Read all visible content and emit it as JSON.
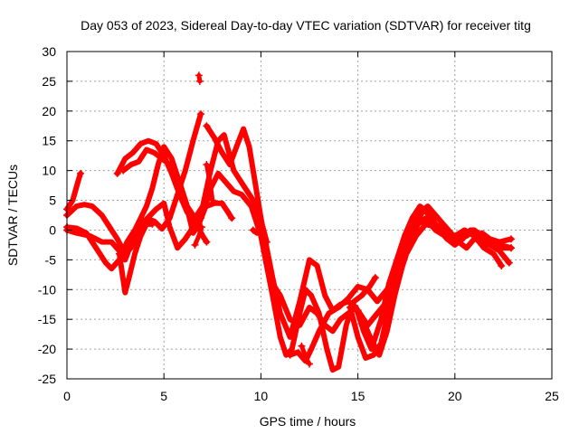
{
  "chart_data": {
    "type": "scatter",
    "title": "Day 053 of 2023, Sidereal Day-to-day VTEC variation (SDTVAR) for receiver titg",
    "xlabel": "GPS time / hours",
    "ylabel": "SDTVAR / TECUs",
    "xlim": [
      0,
      25
    ],
    "ylim": [
      -25,
      30
    ],
    "xticks": [
      0,
      5,
      10,
      15,
      20,
      25
    ],
    "yticks": [
      -25,
      -20,
      -15,
      -10,
      -5,
      0,
      5,
      10,
      15,
      20,
      25,
      30
    ],
    "grid": true,
    "marker": "+",
    "color": "#ff0000",
    "series": [
      {
        "points": [
          [
            0,
            3.5
          ],
          [
            0.3,
            5
          ],
          [
            0.6,
            8.5
          ],
          [
            0.7,
            9.5
          ]
        ]
      },
      {
        "points": [
          [
            0,
            2.5
          ],
          [
            0.5,
            4
          ],
          [
            0.9,
            4.3
          ],
          [
            1.3,
            4
          ],
          [
            1.8,
            2.5
          ],
          [
            2.2,
            0.5
          ],
          [
            2.6,
            -1.5
          ],
          [
            3,
            -4
          ],
          [
            3.3,
            -3
          ],
          [
            3.6,
            -1
          ],
          [
            3.9,
            0.5
          ],
          [
            4.2,
            1.8
          ],
          [
            4.5,
            1.5
          ],
          [
            4.9,
            0.2
          ],
          [
            5.3,
            2
          ],
          [
            5.7,
            6
          ],
          [
            6.1,
            10
          ],
          [
            6.5,
            15
          ],
          [
            6.9,
            19.5
          ]
        ]
      },
      {
        "points": [
          [
            0,
            0.5
          ],
          [
            0.5,
            0.3
          ],
          [
            1,
            -0.5
          ],
          [
            1.5,
            -3
          ],
          [
            2,
            -5.5
          ],
          [
            2.3,
            -6.5
          ],
          [
            2.7,
            -5
          ],
          [
            3.1,
            -2
          ],
          [
            3.5,
            0
          ],
          [
            3.8,
            2
          ],
          [
            4.1,
            4
          ],
          [
            4.4,
            7
          ],
          [
            4.7,
            11
          ],
          [
            5,
            14
          ],
          [
            5.4,
            12
          ],
          [
            5.8,
            8
          ],
          [
            6.2,
            4
          ],
          [
            6.6,
            2
          ],
          [
            7,
            4
          ],
          [
            7.4,
            10
          ],
          [
            7.8,
            15
          ],
          [
            8.1,
            16
          ],
          [
            8.6,
            10
          ],
          [
            9.2,
            7
          ],
          [
            9.6,
            5
          ],
          [
            10,
            0
          ]
        ]
      },
      {
        "points": [
          [
            0,
            0
          ],
          [
            0.5,
            -0.5
          ],
          [
            1.2,
            -1
          ],
          [
            1.8,
            -2
          ],
          [
            2.3,
            -2
          ],
          [
            2.7,
            -3.5
          ],
          [
            3,
            -5
          ],
          [
            3.4,
            -1.5
          ],
          [
            3.7,
            0.5
          ],
          [
            4,
            1.5
          ],
          [
            4.3,
            2.5
          ],
          [
            4.6,
            3.5
          ],
          [
            5,
            4.5
          ],
          [
            5.3,
            0.5
          ],
          [
            5.7,
            -3
          ],
          [
            6.1,
            -1.5
          ],
          [
            6.5,
            0.5
          ],
          [
            6.9,
            2
          ]
        ]
      },
      {
        "points": [
          [
            2.7,
            -4
          ],
          [
            3,
            -10.5
          ],
          [
            3.2,
            -8
          ],
          [
            3.5,
            -4
          ],
          [
            3.8,
            -1
          ],
          [
            4.1,
            1
          ],
          [
            4.4,
            1
          ]
        ]
      },
      {
        "points": [
          [
            2.6,
            9.5
          ],
          [
            3,
            12
          ],
          [
            3.4,
            13
          ],
          [
            3.8,
            14.5
          ],
          [
            4.2,
            15
          ],
          [
            4.6,
            14.5
          ],
          [
            5,
            12.5
          ],
          [
            5.4,
            9.5
          ],
          [
            5.8,
            6
          ],
          [
            6.2,
            3
          ],
          [
            6.6,
            1.5
          ],
          [
            7,
            -1
          ],
          [
            7.2,
            -2
          ]
        ]
      },
      {
        "points": [
          [
            2.9,
            10
          ],
          [
            3.3,
            11
          ],
          [
            3.7,
            11.5
          ],
          [
            4.1,
            13.5
          ],
          [
            4.5,
            13
          ],
          [
            4.9,
            12
          ],
          [
            5.3,
            11
          ],
          [
            5.7,
            9
          ],
          [
            6.1,
            5
          ],
          [
            6.5,
            -0.5
          ],
          [
            6.8,
            1
          ],
          [
            7.1,
            3.5
          ],
          [
            7.4,
            7
          ],
          [
            7.8,
            9.5
          ],
          [
            8.2,
            8
          ],
          [
            8.6,
            6.5
          ],
          [
            9,
            6
          ],
          [
            9.5,
            4
          ],
          [
            10,
            -1
          ],
          [
            10.3,
            -6
          ],
          [
            10.6,
            -11
          ],
          [
            11,
            -18
          ],
          [
            11.3,
            -21
          ],
          [
            11.6,
            -20
          ],
          [
            12,
            -14
          ],
          [
            12.3,
            -10
          ],
          [
            12.6,
            -11
          ],
          [
            13,
            -14
          ],
          [
            13.4,
            -20
          ],
          [
            13.7,
            -23.5
          ],
          [
            14,
            -23
          ],
          [
            14.4,
            -16
          ],
          [
            14.8,
            -12
          ],
          [
            15.2,
            -11
          ],
          [
            15.6,
            -9.5
          ],
          [
            15.9,
            -8
          ]
        ]
      },
      {
        "points": [
          [
            7.2,
            17.5
          ],
          [
            7.6,
            15.5
          ],
          [
            8,
            13
          ],
          [
            8.4,
            11
          ],
          [
            8.8,
            14.5
          ],
          [
            9.1,
            17
          ],
          [
            9.4,
            14
          ],
          [
            9.7,
            8
          ],
          [
            10,
            2
          ],
          [
            10.3,
            -3
          ],
          [
            10.6,
            -8
          ],
          [
            11,
            -14
          ],
          [
            11.5,
            -18
          ],
          [
            12,
            -12
          ],
          [
            12.5,
            -5
          ],
          [
            12.9,
            -6
          ],
          [
            13.3,
            -11
          ],
          [
            13.7,
            -13.5
          ],
          [
            14.1,
            -12.5
          ],
          [
            14.5,
            -12
          ],
          [
            14.9,
            -13
          ],
          [
            15.3,
            -17
          ],
          [
            15.7,
            -20
          ],
          [
            16.2,
            -15
          ],
          [
            16.6,
            -9
          ],
          [
            17,
            -5
          ],
          [
            17.4,
            -1
          ],
          [
            17.8,
            2
          ],
          [
            18.2,
            4
          ],
          [
            18.6,
            3
          ],
          [
            19,
            1
          ],
          [
            19.4,
            0
          ],
          [
            19.8,
            -1
          ],
          [
            20.2,
            -1.5
          ],
          [
            20.6,
            -1
          ],
          [
            21,
            0
          ],
          [
            21.4,
            -1
          ],
          [
            21.8,
            -2.5
          ],
          [
            22.3,
            -3.5
          ],
          [
            22.8,
            -5.5
          ]
        ]
      },
      {
        "points": [
          [
            10,
            0
          ],
          [
            10.3,
            -5
          ],
          [
            10.6,
            -9
          ],
          [
            11,
            -11
          ],
          [
            11.5,
            -15
          ],
          [
            12,
            -16
          ],
          [
            12.5,
            -13
          ],
          [
            12.9,
            -14
          ],
          [
            13.3,
            -16
          ],
          [
            13.7,
            -17
          ],
          [
            14.1,
            -15
          ],
          [
            14.5,
            -14
          ],
          [
            14.9,
            -13
          ],
          [
            15.3,
            -15.5
          ],
          [
            15.7,
            -18.5
          ],
          [
            16.1,
            -21
          ],
          [
            16.5,
            -17
          ],
          [
            16.9,
            -11
          ],
          [
            17.3,
            -6
          ],
          [
            17.6,
            -2
          ],
          [
            18,
            1
          ],
          [
            18.4,
            3.5
          ],
          [
            18.8,
            2
          ],
          [
            19.2,
            0
          ],
          [
            19.6,
            -1.5
          ],
          [
            20,
            -2.5
          ],
          [
            20.4,
            -1.5
          ],
          [
            20.8,
            0
          ],
          [
            21.2,
            -1
          ],
          [
            21.6,
            -2.5
          ],
          [
            22,
            -2
          ],
          [
            22.5,
            -3
          ],
          [
            22.9,
            -3
          ]
        ]
      },
      {
        "points": [
          [
            11.5,
            -21
          ],
          [
            11.9,
            -20.5
          ],
          [
            12.3,
            -22
          ],
          [
            12.6,
            -20
          ],
          [
            13,
            -17
          ],
          [
            13.5,
            -14
          ],
          [
            14,
            -13
          ],
          [
            14.5,
            -11.5
          ],
          [
            15,
            -9.5
          ],
          [
            15.5,
            -10
          ],
          [
            16,
            -12
          ],
          [
            16.5,
            -10
          ],
          [
            17,
            -7
          ],
          [
            17.4,
            -4
          ],
          [
            17.7,
            -1.5
          ],
          [
            18.1,
            1
          ],
          [
            18.5,
            2
          ],
          [
            19,
            0
          ],
          [
            19.5,
            -1
          ],
          [
            20,
            -2
          ],
          [
            20.5,
            -1
          ],
          [
            20.9,
            0
          ],
          [
            21.3,
            -1
          ],
          [
            21.8,
            -1.5
          ],
          [
            22.3,
            -2
          ],
          [
            22.9,
            -1.5
          ]
        ]
      },
      {
        "points": [
          [
            14.6,
            -13
          ],
          [
            15,
            -18
          ],
          [
            15.4,
            -21.5
          ],
          [
            15.8,
            -21
          ],
          [
            16.2,
            -19
          ],
          [
            16.6,
            -13
          ],
          [
            17,
            -6
          ],
          [
            17.4,
            -2
          ],
          [
            17.8,
            1
          ],
          [
            18.2,
            3
          ],
          [
            18.6,
            4
          ],
          [
            19,
            2.5
          ],
          [
            19.4,
            1
          ],
          [
            19.8,
            -0.5
          ],
          [
            20.2,
            -2
          ],
          [
            20.6,
            -3
          ],
          [
            21,
            -1.5
          ],
          [
            21.4,
            -0.5
          ],
          [
            21.8,
            -1.5
          ],
          [
            22.3,
            -2.5
          ],
          [
            22.9,
            -3
          ]
        ]
      },
      {
        "points": [
          [
            15,
            -13.5
          ],
          [
            15.5,
            -16
          ],
          [
            16,
            -14
          ],
          [
            16.5,
            -12
          ],
          [
            17,
            -9
          ],
          [
            17.5,
            -4
          ],
          [
            18,
            -1
          ],
          [
            18.5,
            1
          ],
          [
            19,
            0.5
          ],
          [
            19.5,
            -0.5
          ],
          [
            20,
            -1
          ],
          [
            20.5,
            0
          ],
          [
            21,
            -1
          ],
          [
            21.5,
            -3
          ],
          [
            22,
            -4
          ],
          [
            22.4,
            -6
          ]
        ]
      },
      {
        "points": [
          [
            6.8,
            26
          ],
          [
            6.85,
            25
          ]
        ]
      },
      {
        "points": [
          [
            6.6,
            -2.5
          ],
          [
            6.8,
            -1
          ],
          [
            6.95,
            0.5
          ]
        ]
      },
      {
        "points": [
          [
            7.2,
            4
          ],
          [
            7.6,
            4.5
          ],
          [
            8,
            4.5
          ],
          [
            8.3,
            3
          ],
          [
            8.5,
            2
          ]
        ]
      },
      {
        "points": [
          [
            12.1,
            -19.5
          ],
          [
            12.4,
            -22
          ],
          [
            12.5,
            -22.5
          ]
        ]
      },
      {
        "points": [
          [
            9.6,
            0
          ],
          [
            9.8,
            -0.5
          ],
          [
            10.1,
            0.5
          ],
          [
            10.3,
            -2
          ]
        ]
      },
      {
        "points": [
          [
            7.2,
            11
          ],
          [
            7.4,
            7.5
          ],
          [
            7.5,
            5
          ]
        ]
      }
    ]
  }
}
